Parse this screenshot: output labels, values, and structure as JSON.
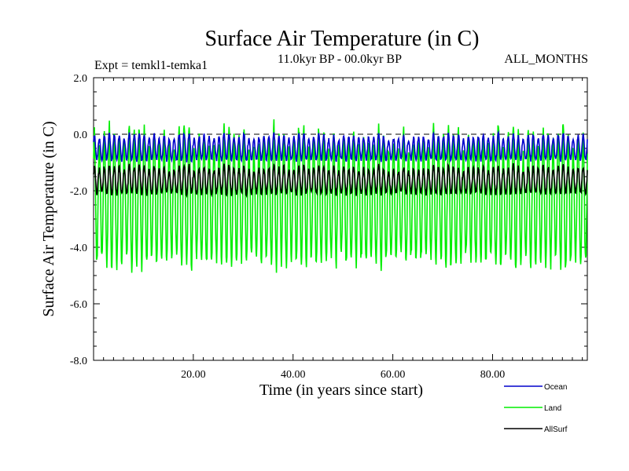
{
  "chart_data": {
    "type": "line",
    "title": "Surface Air Temperature (in C)",
    "subtitle_left": "Expt = temkl1-temka1",
    "subtitle_center": "11.0kyr BP - 00.0kyr BP",
    "subtitle_right": "ALL_MONTHS",
    "xlabel": "Time (in years since start)",
    "ylabel": "Surface Air Temperature (in C)",
    "xlim": [
      0,
      99
    ],
    "ylim": [
      -8.0,
      2.0
    ],
    "xticks": [
      20,
      40,
      60,
      80
    ],
    "xtick_labels": [
      "20.00",
      "40.00",
      "60.00",
      "80.00"
    ],
    "yticks": [
      -8.0,
      -6.0,
      -4.0,
      -2.0,
      0.0,
      2.0
    ],
    "ytick_labels": [
      "-8.0",
      "-6.0",
      "-4.0",
      "-2.0",
      "0.0",
      "2.0"
    ],
    "reference_line": 0.0,
    "series": [
      {
        "name": "Land",
        "color": "#00ee00",
        "center": -2.3,
        "amplitude": 2.2,
        "noise": 0.45
      },
      {
        "name": "AllSurf",
        "color": "#000000",
        "center": -1.65,
        "amplitude": 0.45,
        "noise": 0.15
      },
      {
        "name": "Ocean",
        "color": "#0000cc",
        "center": -0.5,
        "amplitude": 0.42,
        "noise": 0.12
      }
    ],
    "legend": [
      {
        "name": "Ocean",
        "color": "#0000cc"
      },
      {
        "name": "Land",
        "color": "#00ee00"
      },
      {
        "name": "AllSurf",
        "color": "#000000"
      }
    ]
  }
}
